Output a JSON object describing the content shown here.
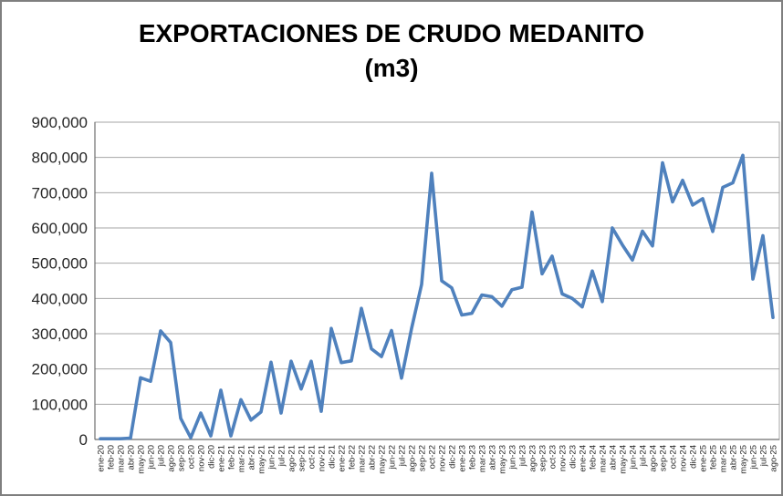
{
  "title": {
    "line1": "EXPORTACIONES DE CRUDO MEDANITO",
    "line2": "(m3)"
  },
  "chart_data": {
    "type": "line",
    "title": "EXPORTACIONES DE CRUDO MEDANITO (m3)",
    "xlabel": "",
    "ylabel": "",
    "ylim": [
      0,
      900000
    ],
    "ytick_step": 100000,
    "ytick_labels": [
      "0",
      "100,000",
      "200,000",
      "300,000",
      "400,000",
      "500,000",
      "600,000",
      "700,000",
      "800,000",
      "900,000"
    ],
    "grid": true,
    "legend": false,
    "series_name": "Exportaciones de crudo Medanito (m3)",
    "series_color": "#4f81bd",
    "categories": [
      "ene-20",
      "feb-20",
      "mar-20",
      "abr-20",
      "may-20",
      "jun-20",
      "jul-20",
      "ago-20",
      "sep-20",
      "oct-20",
      "nov-20",
      "dic-20",
      "ene-21",
      "feb-21",
      "mar-21",
      "abr-21",
      "may-21",
      "jun-21",
      "jul-21",
      "ago-21",
      "sep-21",
      "oct-21",
      "nov-21",
      "dic-21",
      "ene-22",
      "feb-22",
      "mar-22",
      "abr-22",
      "may-22",
      "jun-22",
      "jul-22",
      "ago-22",
      "sep-22",
      "oct-22",
      "nov-22",
      "dic-22",
      "ene-23",
      "feb-23",
      "mar-23",
      "abr-23",
      "may-23",
      "jun-23",
      "jul-23",
      "ago-23",
      "sep-23",
      "oct-23",
      "nov-23",
      "dic-23",
      "ene-24",
      "feb-24",
      "mar-24",
      "abr-24",
      "may-24",
      "jun-24",
      "jul-24",
      "ago-24",
      "sep-24",
      "oct-24",
      "nov-24",
      "dic-24",
      "ene-25",
      "feb-25",
      "mar-25",
      "abr-25",
      "may-25",
      "jun-25",
      "jul-25",
      "ago-25"
    ],
    "values": [
      2000,
      2000,
      2000,
      4000,
      175000,
      165000,
      308000,
      275000,
      60000,
      5000,
      75000,
      10000,
      140000,
      10000,
      113000,
      55000,
      78000,
      219000,
      75000,
      222000,
      143000,
      222000,
      80000,
      315000,
      218000,
      223000,
      372000,
      257000,
      235000,
      309000,
      174000,
      315000,
      440000,
      755000,
      450000,
      430000,
      353000,
      358000,
      410000,
      405000,
      378000,
      425000,
      432000,
      645000,
      470000,
      520000,
      413000,
      400000,
      376000,
      478000,
      391000,
      600000,
      552000,
      509000,
      591000,
      549000,
      785000,
      674000,
      735000,
      665000,
      683000,
      590000,
      715000,
      728000,
      806000,
      455000,
      578000,
      346000
    ]
  },
  "axes": {
    "gridline_color": "#a6a6a6",
    "axis_color": "#6e6e6e",
    "tick_label_color": "#262626"
  }
}
